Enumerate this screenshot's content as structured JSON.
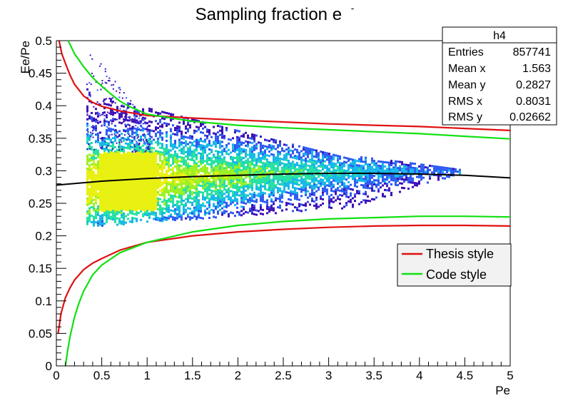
{
  "chart_data": {
    "type": "heatmap",
    "title": "Sampling fraction e",
    "title_superscript": "-",
    "xlabel": "Pe",
    "ylabel": "Ee/Pe",
    "xlim": [
      0,
      5
    ],
    "ylim": [
      0,
      0.5
    ],
    "x_ticks": [
      0,
      0.5,
      1,
      1.5,
      2,
      2.5,
      3,
      3.5,
      4,
      4.5,
      5
    ],
    "x_tick_labels": [
      "0",
      "0.5",
      "1",
      "1.5",
      "2",
      "2.5",
      "3",
      "3.5",
      "4",
      "4.5",
      "5"
    ],
    "y_ticks": [
      0,
      0.05,
      0.1,
      0.15,
      0.2,
      0.25,
      0.3,
      0.35,
      0.4,
      0.45,
      0.5
    ],
    "y_tick_labels": [
      "0",
      "0.05",
      "0.1",
      "0.15",
      "0.2",
      "0.25",
      "0.3",
      "0.35",
      "0.4",
      "0.45",
      "0.5"
    ],
    "stats_box": {
      "name": "h4",
      "rows": [
        {
          "label": "Entries",
          "value": "857741"
        },
        {
          "label": "Mean x",
          "value": "1.563"
        },
        {
          "label": "Mean y",
          "value": "0.2827"
        },
        {
          "label": "RMS x",
          "value": "0.8031"
        },
        {
          "label": "RMS y",
          "value": "0.02662"
        }
      ]
    },
    "legend": {
      "placement": "right",
      "entries": [
        {
          "name": "Thesis style",
          "color": "#e01010"
        },
        {
          "name": "Code style",
          "color": "#10e010"
        }
      ]
    },
    "series": [
      {
        "name": "Thesis style",
        "color": "#e01010",
        "role": "upper",
        "x": [
          0.03,
          0.06,
          0.1,
          0.15,
          0.2,
          0.3,
          0.4,
          0.5,
          0.7,
          1.0,
          1.5,
          2.0,
          2.5,
          3.0,
          3.5,
          4.0,
          4.5,
          5.0
        ],
        "y": [
          0.5,
          0.48,
          0.465,
          0.447,
          0.433,
          0.415,
          0.405,
          0.399,
          0.392,
          0.385,
          0.381,
          0.378,
          0.375,
          0.372,
          0.37,
          0.368,
          0.365,
          0.362
        ]
      },
      {
        "name": "Thesis style",
        "color": "#e01010",
        "role": "lower",
        "x": [
          0.02,
          0.05,
          0.1,
          0.15,
          0.2,
          0.3,
          0.4,
          0.5,
          0.7,
          1.0,
          1.5,
          2.0,
          2.5,
          3.0,
          3.5,
          4.0,
          4.5,
          5.0
        ],
        "y": [
          0.05,
          0.08,
          0.105,
          0.12,
          0.132,
          0.148,
          0.158,
          0.165,
          0.178,
          0.19,
          0.2,
          0.206,
          0.21,
          0.213,
          0.215,
          0.216,
          0.216,
          0.215
        ]
      },
      {
        "name": "Code style",
        "color": "#10e010",
        "role": "upper",
        "x": [
          0.13,
          0.2,
          0.3,
          0.4,
          0.5,
          0.6,
          0.7,
          0.8,
          1.0,
          1.5,
          2.0,
          2.5,
          3.0,
          3.5,
          4.0,
          4.5,
          5.0
        ],
        "y": [
          0.5,
          0.48,
          0.46,
          0.443,
          0.43,
          0.418,
          0.407,
          0.399,
          0.387,
          0.376,
          0.37,
          0.366,
          0.363,
          0.36,
          0.357,
          0.353,
          0.349
        ]
      },
      {
        "name": "Code style",
        "color": "#10e010",
        "role": "lower",
        "x": [
          0.1,
          0.12,
          0.15,
          0.2,
          0.25,
          0.3,
          0.4,
          0.5,
          0.7,
          1.0,
          1.5,
          2.0,
          2.5,
          3.0,
          3.5,
          4.0,
          4.5,
          5.0
        ],
        "y": [
          0.0,
          0.02,
          0.045,
          0.075,
          0.097,
          0.115,
          0.14,
          0.155,
          0.174,
          0.19,
          0.206,
          0.216,
          0.222,
          0.226,
          0.228,
          0.23,
          0.23,
          0.229
        ]
      },
      {
        "name": "fit",
        "color": "#000000",
        "role": "mean",
        "x": [
          0,
          0.5,
          1.0,
          1.5,
          2.0,
          2.5,
          3.0,
          3.5,
          4.0,
          4.5,
          5.0
        ],
        "y": [
          0.278,
          0.284,
          0.288,
          0.291,
          0.293,
          0.295,
          0.296,
          0.296,
          0.295,
          0.293,
          0.289
        ]
      }
    ],
    "density": {
      "description_x_range": [
        0.33,
        4.45
      ],
      "core_band": {
        "x": [
          0.5,
          1.0
        ],
        "y": [
          0.24,
          0.33
        ]
      },
      "colorscale": [
        "#3b0cb7",
        "#2a58f2",
        "#11b6e8",
        "#20e0a0",
        "#9af01f",
        "#e8f00a"
      ]
    }
  }
}
